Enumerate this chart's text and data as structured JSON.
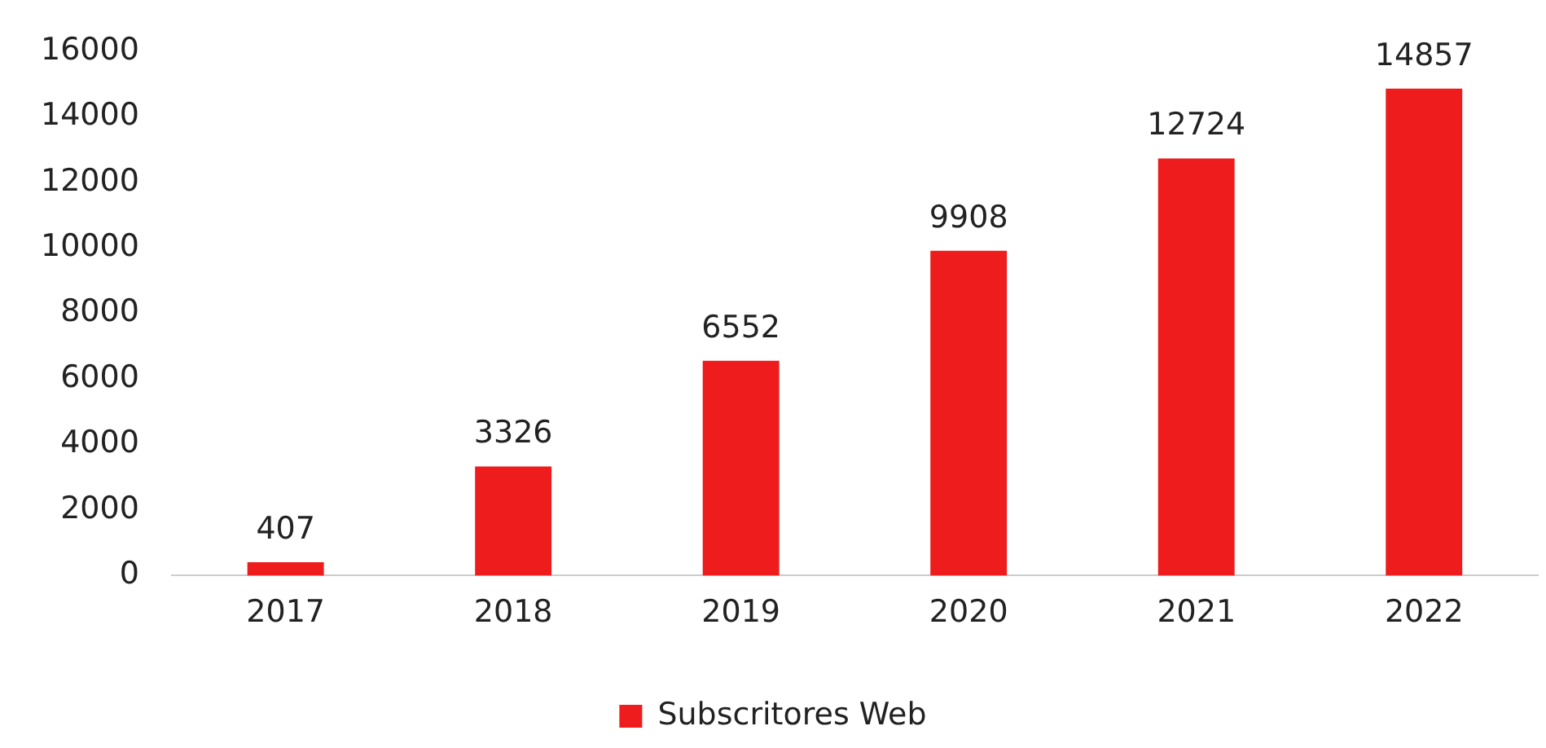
{
  "chart_data": {
    "type": "bar",
    "categories": [
      "2017",
      "2018",
      "2019",
      "2020",
      "2021",
      "2022"
    ],
    "series": [
      {
        "name": "Subscritores Web",
        "color": "#ee1c1c",
        "values": [
          407,
          3326,
          6552,
          9908,
          12724,
          14857
        ]
      }
    ],
    "ylim": [
      0,
      16000
    ],
    "yticks": [
      0,
      2000,
      4000,
      6000,
      8000,
      10000,
      12000,
      14000,
      16000
    ],
    "grid": false,
    "legend": "bottom",
    "data_labels": true
  }
}
